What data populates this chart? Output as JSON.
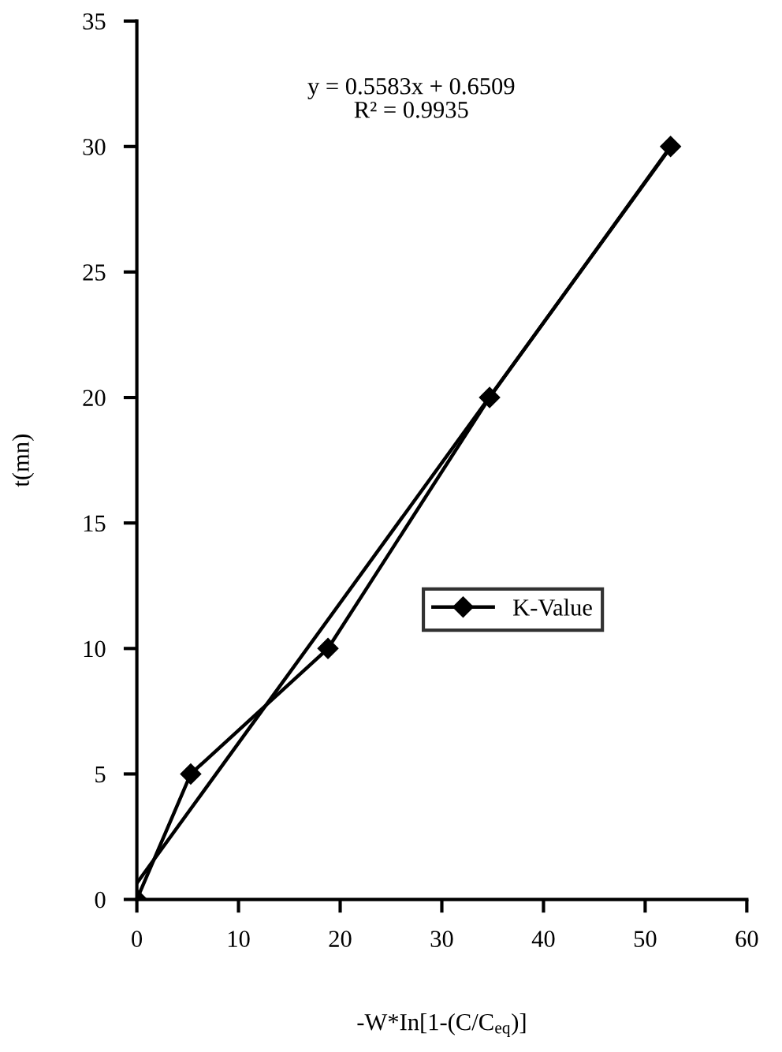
{
  "chart_data": {
    "type": "line",
    "xlabel": "-W*In[1-(C/C$_{eq}$)]",
    "ylabel": "t(mn)",
    "annotations": [
      "y = 0.5583x + 0.6509\nR² = 0.9935"
    ],
    "series": [
      {
        "name": "K-Value",
        "color": "#000000",
        "x": [
          0,
          5.3,
          18.8,
          34.7,
          52.5
        ],
        "values": [
          0,
          5,
          10,
          20,
          30
        ]
      },
      {
        "color": "#000000",
        "x": [
          0,
          52.5
        ],
        "values": [
          0.65,
          29.96
        ],
        "marker": "none"
      }
    ],
    "xlim": [
      0,
      60
    ],
    "xticks": [
      0,
      10,
      20,
      30,
      40,
      50,
      60
    ],
    "ylim": [
      0,
      35
    ],
    "yticks": [
      0,
      5,
      10,
      15,
      20,
      25,
      30,
      35
    ],
    "grid": false,
    "legend": "right",
    "marker": "diamond",
    "line_style": "solid"
  }
}
